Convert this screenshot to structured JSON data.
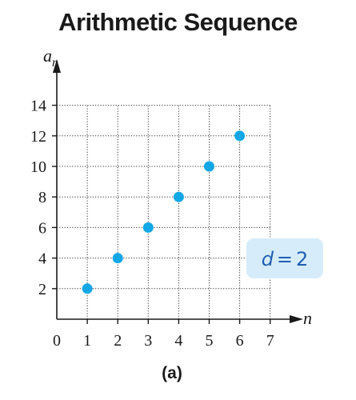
{
  "title": "Arithmetic Sequence",
  "caption": "(a)",
  "chart_data": {
    "type": "scatter",
    "title": "Arithmetic Sequence",
    "xlabel": "n",
    "ylabel_main": "a",
    "ylabel_sub": "n",
    "x": [
      1,
      2,
      3,
      4,
      5,
      6
    ],
    "y": [
      2,
      4,
      6,
      8,
      10,
      12
    ],
    "xlim": [
      0,
      7
    ],
    "ylim": [
      0,
      14
    ],
    "xticks": [
      0,
      1,
      2,
      3,
      4,
      5,
      6,
      7
    ],
    "yticks": [
      2,
      4,
      6,
      8,
      10,
      12,
      14
    ],
    "grid": true,
    "annotation": {
      "var": "d",
      "eq": "=",
      "value": "2"
    },
    "colors": {
      "point": "#12a7e6",
      "annotation_bg": "#d6ecfa",
      "annotation_text": "#1f5fb0",
      "axis": "#1a1a1a"
    }
  }
}
